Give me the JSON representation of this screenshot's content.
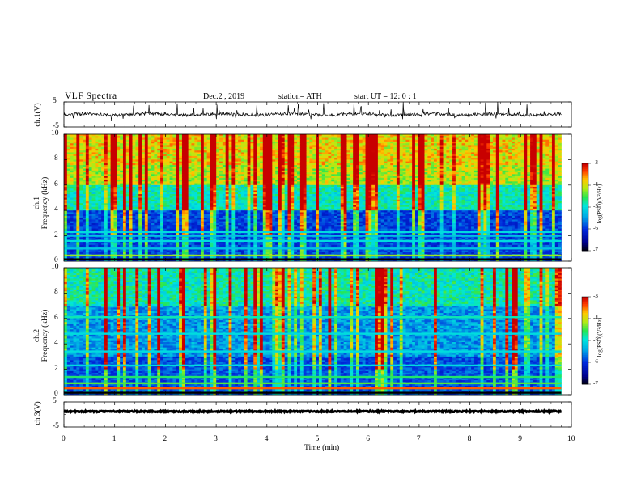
{
  "header": {
    "title": "VLF  Spectra",
    "date": "Dec.2  , 2019",
    "station": "station= ATH",
    "start": "start  UT  =    12: 0   : 1"
  },
  "chart_data": [
    {
      "type": "line",
      "panel": "ch1-waveform",
      "ylabel": "ch.1(V)",
      "ylim": [
        -5,
        5
      ],
      "yticks": [
        "5",
        "-5"
      ],
      "xlim": [
        0,
        10
      ],
      "x_extent_min": 9.8
    },
    {
      "type": "heatmap",
      "panel": "ch1-spectrogram",
      "ylabel_channel": "ch.1",
      "ylabel": "Frequency  (kHz)",
      "ylim": [
        0,
        10
      ],
      "yticks": [
        "10",
        "8",
        "6",
        "4",
        "2",
        "0"
      ],
      "colorbar": {
        "label": "log(PSD)(V²/Hz)",
        "range": [
          -7,
          -3
        ],
        "ticks": [
          "-3",
          "-4",
          "-5",
          "-6",
          "-7"
        ]
      }
    },
    {
      "type": "heatmap",
      "panel": "ch2-spectrogram",
      "ylabel_channel": "ch.2",
      "ylabel": "Frequency  (kHz)",
      "ylim": [
        0,
        10
      ],
      "yticks": [
        "10",
        "8",
        "6",
        "4",
        "2",
        "0"
      ],
      "colorbar": {
        "label": "log(PSD)(V²/Hz)",
        "range": [
          -7,
          -3
        ],
        "ticks": [
          "-3",
          "-4",
          "-5",
          "-6",
          "-7"
        ]
      }
    },
    {
      "type": "line",
      "panel": "ch3-waveform",
      "ylabel": "ch.3(V)",
      "ylim": [
        -5,
        5
      ],
      "yticks": [
        "5",
        "-5"
      ],
      "xlabel": "Time  (min)",
      "xlim": [
        0,
        10
      ],
      "xticks": [
        "0",
        "1",
        "2",
        "3",
        "4",
        "5",
        "6",
        "7",
        "8",
        "9",
        "10"
      ]
    }
  ],
  "colors": {
    "background": "#ffffff",
    "spectrum_low": "#0010a0",
    "spectrum_mid": "#00e0e0",
    "spectrum_high": "#ff2000",
    "line": "#000000"
  }
}
